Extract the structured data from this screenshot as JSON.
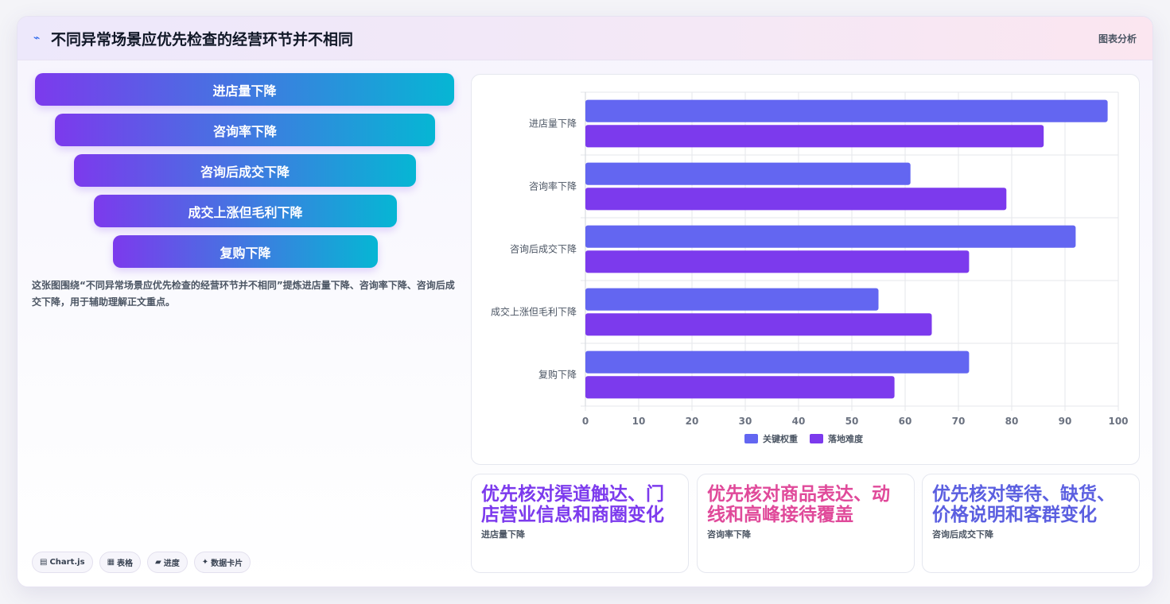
{
  "header": {
    "title": "不同异常场景应优先检查的经营环节并不相同",
    "tag": "图表分析"
  },
  "funnel": [
    "进店量下降",
    "咨询率下降",
    "咨询后成交下降",
    "成交上涨但毛利下降",
    "复购下降"
  ],
  "description": "这张图围绕“不同异常场景应优先检查的经营环节并不相同”提炼进店量下降、咨询率下降、咨询后成交下降，用于辅助理解正文重点。",
  "chips": [
    {
      "icon": "▤",
      "icon_name": "chart-icon",
      "label": "Chart.js"
    },
    {
      "icon": "▦",
      "icon_name": "table-icon",
      "label": "表格"
    },
    {
      "icon": "▰",
      "icon_name": "progress-icon",
      "label": "进度"
    },
    {
      "icon": "✦",
      "icon_name": "sparkle-icon",
      "label": "数据卡片"
    }
  ],
  "chart_data": {
    "type": "bar",
    "orientation": "horizontal",
    "categories": [
      "进店量下降",
      "咨询率下降",
      "咨询后成交下降",
      "成交上涨但毛利下降",
      "复购下降"
    ],
    "series": [
      {
        "name": "关键权重",
        "color": "#6366f1",
        "values": [
          98,
          61,
          92,
          55,
          72
        ]
      },
      {
        "name": "落地难度",
        "color": "#7c3aed",
        "values": [
          86,
          79,
          72,
          65,
          58
        ]
      }
    ],
    "xlim": [
      0,
      100
    ],
    "xticks": [
      0,
      10,
      20,
      30,
      40,
      50,
      60,
      70,
      80,
      90,
      100
    ],
    "grid": true,
    "legend_position": "bottom"
  },
  "stat_cards": [
    {
      "value": "优先核对渠道触达、门店营业信息和商圈变化",
      "label": "进店量下降",
      "color": "#7c3aed"
    },
    {
      "value": "优先核对商品表达、动线和高峰接待覆盖",
      "label": "咨询率下降",
      "color": "#e04a9a"
    },
    {
      "value": "优先核对等待、缺货、价格说明和客群变化",
      "label": "咨询后成交下降",
      "color": "#5b5fe0"
    }
  ]
}
